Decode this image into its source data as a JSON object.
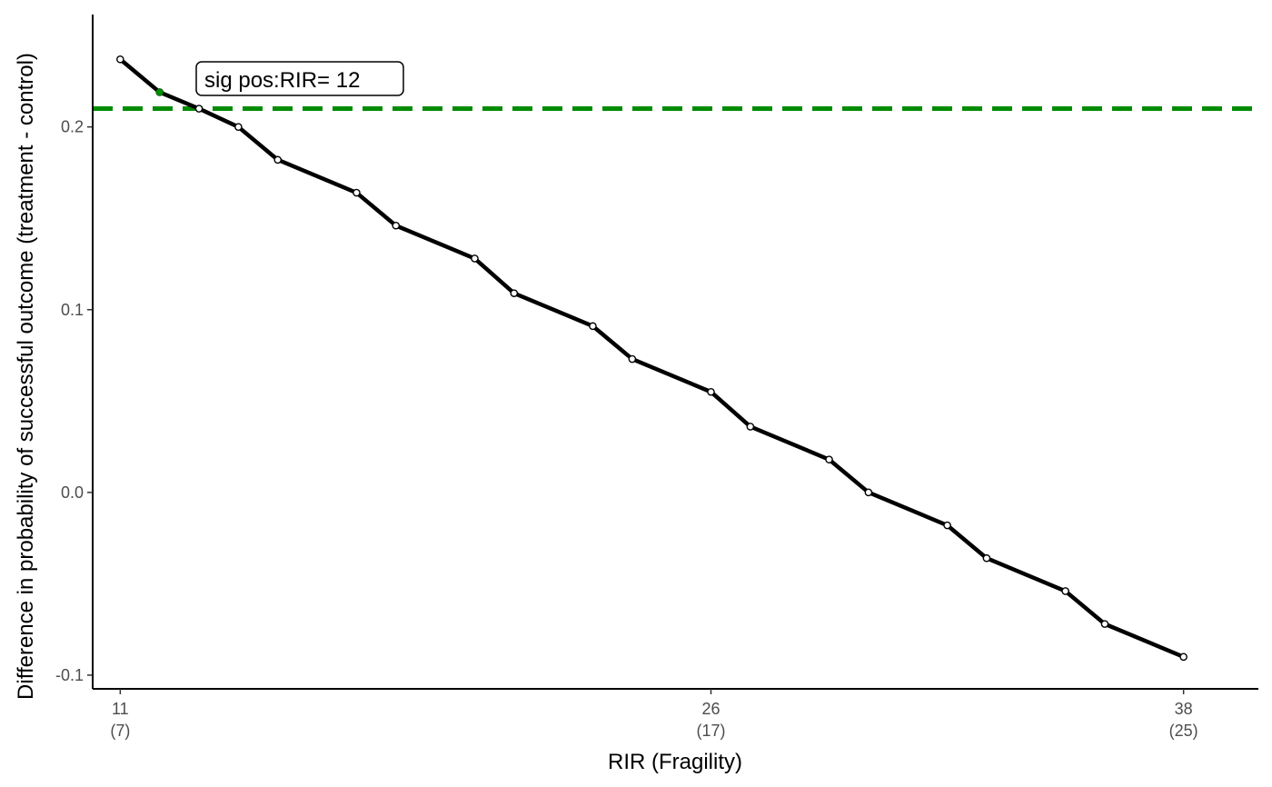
{
  "chart_data": {
    "type": "line",
    "title": "",
    "xlabel": "RIR (Fragility)",
    "ylabel": "Difference in probability of successful outcome (treatment - control)",
    "xlim": [
      10.3,
      39.9
    ],
    "ylim": [
      -0.1075,
      0.2615
    ],
    "x_ticks": [
      {
        "value": 11,
        "label": "11",
        "sublabel": "(7)"
      },
      {
        "value": 26,
        "label": "26",
        "sublabel": "(17)"
      },
      {
        "value": 38,
        "label": "38",
        "sublabel": "(25)"
      }
    ],
    "y_ticks": [
      {
        "value": -0.1,
        "label": "-0.1"
      },
      {
        "value": 0.0,
        "label": "0.0"
      },
      {
        "value": 0.1,
        "label": "0.1"
      },
      {
        "value": 0.2,
        "label": "0.2"
      }
    ],
    "series": [
      {
        "points": [
          {
            "x": 11,
            "y": 0.237
          },
          {
            "x": 12,
            "y": 0.219
          },
          {
            "x": 13,
            "y": 0.21
          },
          {
            "x": 14,
            "y": 0.2
          },
          {
            "x": 15,
            "y": 0.182
          },
          {
            "x": 17,
            "y": 0.164
          },
          {
            "x": 18,
            "y": 0.146
          },
          {
            "x": 20,
            "y": 0.128
          },
          {
            "x": 21,
            "y": 0.109
          },
          {
            "x": 23,
            "y": 0.091
          },
          {
            "x": 24,
            "y": 0.073
          },
          {
            "x": 26,
            "y": 0.055
          },
          {
            "x": 27,
            "y": 0.036
          },
          {
            "x": 29,
            "y": 0.018
          },
          {
            "x": 30,
            "y": 0.0
          },
          {
            "x": 32,
            "y": -0.018
          },
          {
            "x": 33,
            "y": -0.036
          },
          {
            "x": 35,
            "y": -0.054
          },
          {
            "x": 36,
            "y": -0.072
          },
          {
            "x": 38,
            "y": -0.09
          }
        ]
      }
    ],
    "highlight_point": {
      "x": 12,
      "y": 0.219
    },
    "reference_line": {
      "y": 0.21,
      "style": "dashed",
      "color": "#008B00"
    },
    "annotation": {
      "text": "sig pos:RIR= 12",
      "x": 12,
      "y": 0.219
    },
    "grid": false,
    "legend": "none",
    "colors": {
      "line": "#000000",
      "point_fill": "#ffffff",
      "highlight": "#008B00"
    }
  }
}
